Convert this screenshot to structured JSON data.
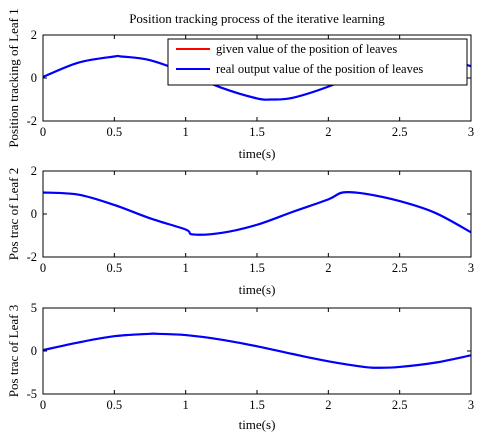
{
  "figure_title": "Position tracking process of the iterative learning",
  "colors": {
    "given": "#ff0000",
    "real": "#0000ff",
    "axes": "#000000",
    "background": "#ffffff"
  },
  "chart_data": [
    {
      "type": "line",
      "title": "Position tracking process of the iterative learning",
      "xlabel": "time(s)",
      "ylabel": "Position tracking of Leaf 1",
      "xlim": [
        0,
        3
      ],
      "ylim": [
        -2,
        2
      ],
      "xticks": [
        "0",
        "0.5",
        "1",
        "1.5",
        "2",
        "2.5",
        "3"
      ],
      "yticks": [
        "-2",
        "0",
        "2"
      ],
      "grid": false,
      "legend": {
        "placement": "top-right",
        "entries": [
          {
            "label": "given value of the position of leaves",
            "color": "#ff0000"
          },
          {
            "label": "real output value of the position of leaves",
            "color": "#0000ff"
          }
        ]
      },
      "series": [
        {
          "name": "given value of the position of leaves",
          "color": "#ff0000",
          "x": [
            0,
            0.25,
            0.5,
            0.55,
            0.75,
            1.0,
            1.25,
            1.5,
            1.6,
            1.75,
            2.0,
            2.25,
            2.5,
            2.75,
            3.0
          ],
          "y": [
            0.05,
            0.72,
            1.0,
            1.0,
            0.83,
            0.25,
            -0.45,
            -0.95,
            -1.0,
            -0.92,
            -0.4,
            0.3,
            0.85,
            0.98,
            0.55
          ]
        },
        {
          "name": "real output value of the position of leaves",
          "color": "#0000ff",
          "x": [
            0,
            0.25,
            0.5,
            0.55,
            0.75,
            1.0,
            1.25,
            1.5,
            1.6,
            1.75,
            2.0,
            2.25,
            2.5,
            2.75,
            3.0
          ],
          "y": [
            0.05,
            0.72,
            1.0,
            1.0,
            0.83,
            0.25,
            -0.45,
            -0.95,
            -1.0,
            -0.92,
            -0.4,
            0.3,
            0.85,
            0.98,
            0.55
          ]
        }
      ]
    },
    {
      "type": "line",
      "title": "",
      "xlabel": "time(s)",
      "ylabel": "Pos trac of Leaf 2",
      "xlim": [
        0,
        3
      ],
      "ylim": [
        -2,
        2
      ],
      "xticks": [
        "0",
        "0.5",
        "1",
        "1.5",
        "2",
        "2.5",
        "3"
      ],
      "yticks": [
        "-2",
        "0",
        "2"
      ],
      "grid": false,
      "series": [
        {
          "color": "#ff0000",
          "x": [
            0,
            0.25,
            0.5,
            0.75,
            1.0,
            1.05,
            1.25,
            1.5,
            1.75,
            2.0,
            2.1,
            2.25,
            2.5,
            2.75,
            3.0
          ],
          "y": [
            1.0,
            0.9,
            0.42,
            -0.2,
            -0.72,
            -0.95,
            -0.88,
            -0.5,
            0.1,
            0.68,
            1.0,
            0.95,
            0.6,
            0.05,
            -0.85
          ]
        },
        {
          "color": "#0000ff",
          "x": [
            0,
            0.25,
            0.5,
            0.75,
            1.0,
            1.05,
            1.25,
            1.5,
            1.75,
            2.0,
            2.1,
            2.25,
            2.5,
            2.75,
            3.0
          ],
          "y": [
            1.0,
            0.9,
            0.42,
            -0.2,
            -0.72,
            -0.95,
            -0.88,
            -0.5,
            0.1,
            0.68,
            1.0,
            0.95,
            0.6,
            0.05,
            -0.85
          ]
        }
      ]
    },
    {
      "type": "line",
      "title": "",
      "xlabel": "time(s)",
      "ylabel": "Pos trac of Leaf 3",
      "xlim": [
        0,
        3
      ],
      "ylim": [
        -5,
        5
      ],
      "xticks": [
        "0",
        "0.5",
        "1",
        "1.5",
        "2",
        "2.5",
        "3"
      ],
      "yticks": [
        "-5",
        "0",
        "5"
      ],
      "grid": false,
      "series": [
        {
          "color": "#ff0000",
          "x": [
            0,
            0.25,
            0.5,
            0.75,
            0.8,
            1.0,
            1.25,
            1.5,
            1.75,
            2.0,
            2.25,
            2.35,
            2.5,
            2.75,
            3.0
          ],
          "y": [
            0.1,
            1.0,
            1.72,
            2.0,
            2.0,
            1.85,
            1.32,
            0.55,
            -0.35,
            -1.2,
            -1.85,
            -1.95,
            -1.85,
            -1.35,
            -0.5
          ]
        },
        {
          "color": "#0000ff",
          "x": [
            0,
            0.25,
            0.5,
            0.75,
            0.8,
            1.0,
            1.25,
            1.5,
            1.75,
            2.0,
            2.25,
            2.35,
            2.5,
            2.75,
            3.0
          ],
          "y": [
            0.1,
            1.0,
            1.72,
            2.0,
            2.0,
            1.85,
            1.32,
            0.55,
            -0.35,
            -1.2,
            -1.85,
            -1.95,
            -1.85,
            -1.35,
            -0.5
          ]
        }
      ]
    }
  ]
}
